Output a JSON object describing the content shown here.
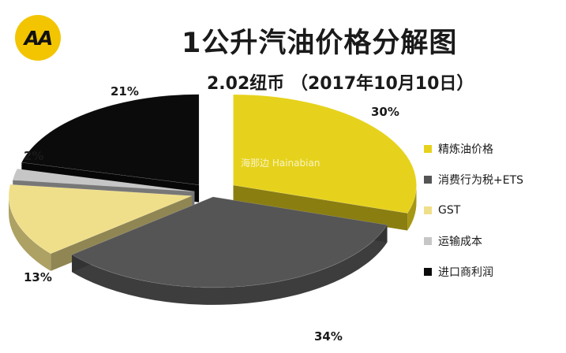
{
  "logo": {
    "text": "AA"
  },
  "chart_data": {
    "type": "pie",
    "title": "1公升汽油价格分解图",
    "subtitle": "2.02纽币 （2017年10月10日）",
    "series": [
      {
        "name": "精炼油价格",
        "value": 30,
        "label": "30%",
        "color": "#e6d21c"
      },
      {
        "name": "消费行为税+ETS",
        "value": 34,
        "label": "34%",
        "color": "#555555"
      },
      {
        "name": "GST",
        "value": 13,
        "label": "13%",
        "color": "#f0df8a"
      },
      {
        "name": "运输成本",
        "value": 2,
        "label": "2%",
        "color": "#c6c6c6"
      },
      {
        "name": "进口商利润",
        "value": 21,
        "label": "21%",
        "color": "#0b0b0b"
      }
    ],
    "legend_position": "right",
    "exploded": true
  },
  "watermark": {
    "text": "海那边",
    "sub": "Hainabian"
  }
}
